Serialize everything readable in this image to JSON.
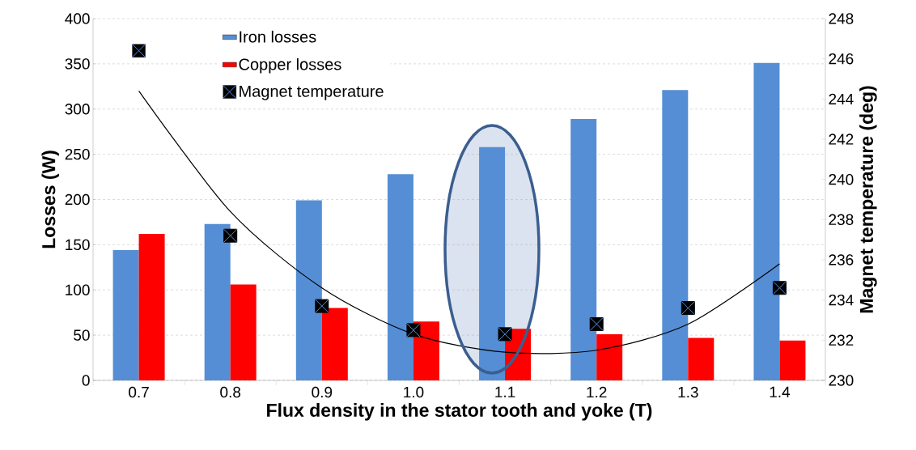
{
  "chart_data": {
    "type": "bar",
    "xlabel": "Flux density in the stator tooth and yoke (T)",
    "ylabel": "Losses (W)",
    "y2label": "Magnet temperature (deg)",
    "categories": [
      "0.7",
      "0.8",
      "0.9",
      "1.0",
      "1.1",
      "1.2",
      "1.3",
      "1.4"
    ],
    "series": [
      {
        "name": "Iron losses",
        "color": "#558ed5",
        "values": [
          144,
          173,
          199,
          228,
          258,
          289,
          321,
          351
        ]
      },
      {
        "name": "Copper losses",
        "color": "#ff0000",
        "values": [
          162,
          106,
          80,
          65,
          57,
          51,
          47,
          44
        ]
      },
      {
        "name": "Magnet temperature",
        "type": "scatter",
        "axis": "y2",
        "color": "#000000",
        "marker": "square",
        "values": [
          246.4,
          237.2,
          233.7,
          232.5,
          232.3,
          232.8,
          233.6,
          234.6
        ]
      },
      {
        "type": "line",
        "axis": "y2",
        "color": "#000000",
        "values": [
          244.4,
          238.4,
          234.6,
          232.3,
          231.4,
          231.5,
          232.8,
          235.8
        ]
      }
    ],
    "ylim": [
      0,
      400
    ],
    "yticks": [
      0,
      50,
      100,
      150,
      200,
      250,
      300,
      350,
      400
    ],
    "y2lim": [
      230,
      248
    ],
    "y2ticks": [
      230,
      232,
      234,
      236,
      238,
      240,
      242,
      244,
      246,
      248
    ],
    "grid": "y",
    "legend": "top left"
  }
}
